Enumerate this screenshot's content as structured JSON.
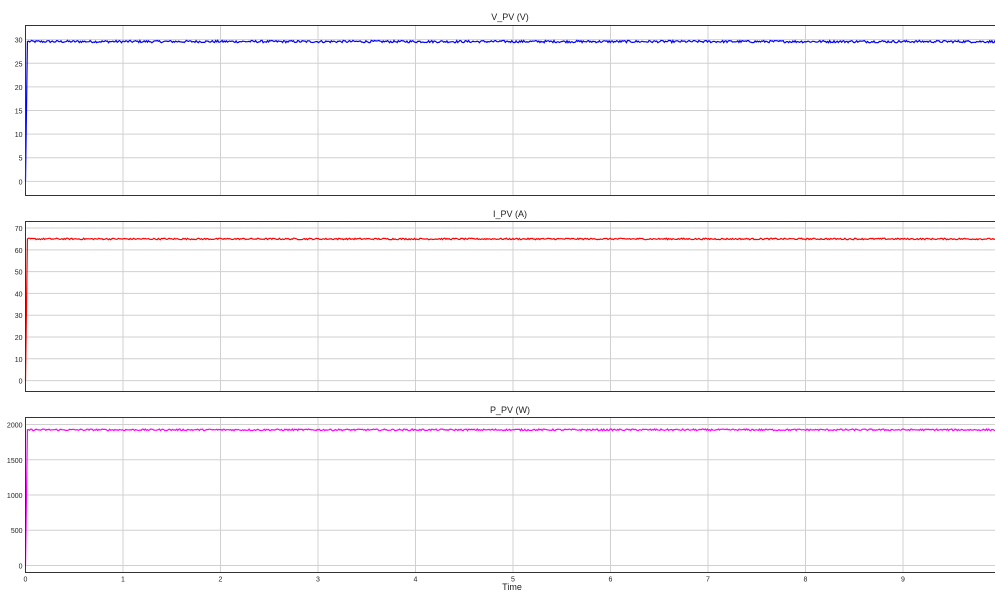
{
  "chart_data": [
    {
      "type": "line",
      "title": "V_PV (V)",
      "xlabel": "",
      "ylabel": "",
      "xlim": [
        0,
        10
      ],
      "ylim": [
        -3,
        33
      ],
      "yticks": [
        0,
        5,
        10,
        15,
        20,
        25,
        30
      ],
      "xticks": [
        0,
        1,
        2,
        3,
        4,
        5,
        6,
        7,
        8,
        9
      ],
      "grid": true,
      "series": [
        {
          "color": "#0000ff",
          "initial": 0,
          "steady": 29.6,
          "ripple": 0.25,
          "x": [
            0,
            0.02,
            10
          ],
          "y": [
            0,
            29.6,
            29.6
          ]
        }
      ]
    },
    {
      "type": "line",
      "title": "I_PV (A)",
      "xlabel": "",
      "ylabel": "",
      "xlim": [
        0,
        10
      ],
      "ylim": [
        -5,
        73
      ],
      "yticks": [
        0,
        10,
        20,
        30,
        40,
        50,
        60,
        70
      ],
      "xticks": [
        0,
        1,
        2,
        3,
        4,
        5,
        6,
        7,
        8,
        9
      ],
      "grid": true,
      "series": [
        {
          "color": "#ff0000",
          "initial": 0,
          "steady": 65,
          "ripple": 0.35,
          "x": [
            0,
            0.02,
            10
          ],
          "y": [
            0,
            65,
            65
          ]
        }
      ]
    },
    {
      "type": "line",
      "title": "P_PV (W)",
      "xlabel": "Time",
      "ylabel": "",
      "xlim": [
        0,
        10
      ],
      "ylim": [
        -100,
        2100
      ],
      "yticks": [
        0,
        500,
        1000,
        1500,
        2000
      ],
      "xticks": [
        0,
        1,
        2,
        3,
        4,
        5,
        6,
        7,
        8,
        9
      ],
      "grid": true,
      "series": [
        {
          "color": "#ff00ff",
          "initial": 0,
          "steady": 1925,
          "ripple": 12,
          "x": [
            0,
            0.02,
            10
          ],
          "y": [
            0,
            1925,
            1925
          ]
        }
      ]
    }
  ]
}
